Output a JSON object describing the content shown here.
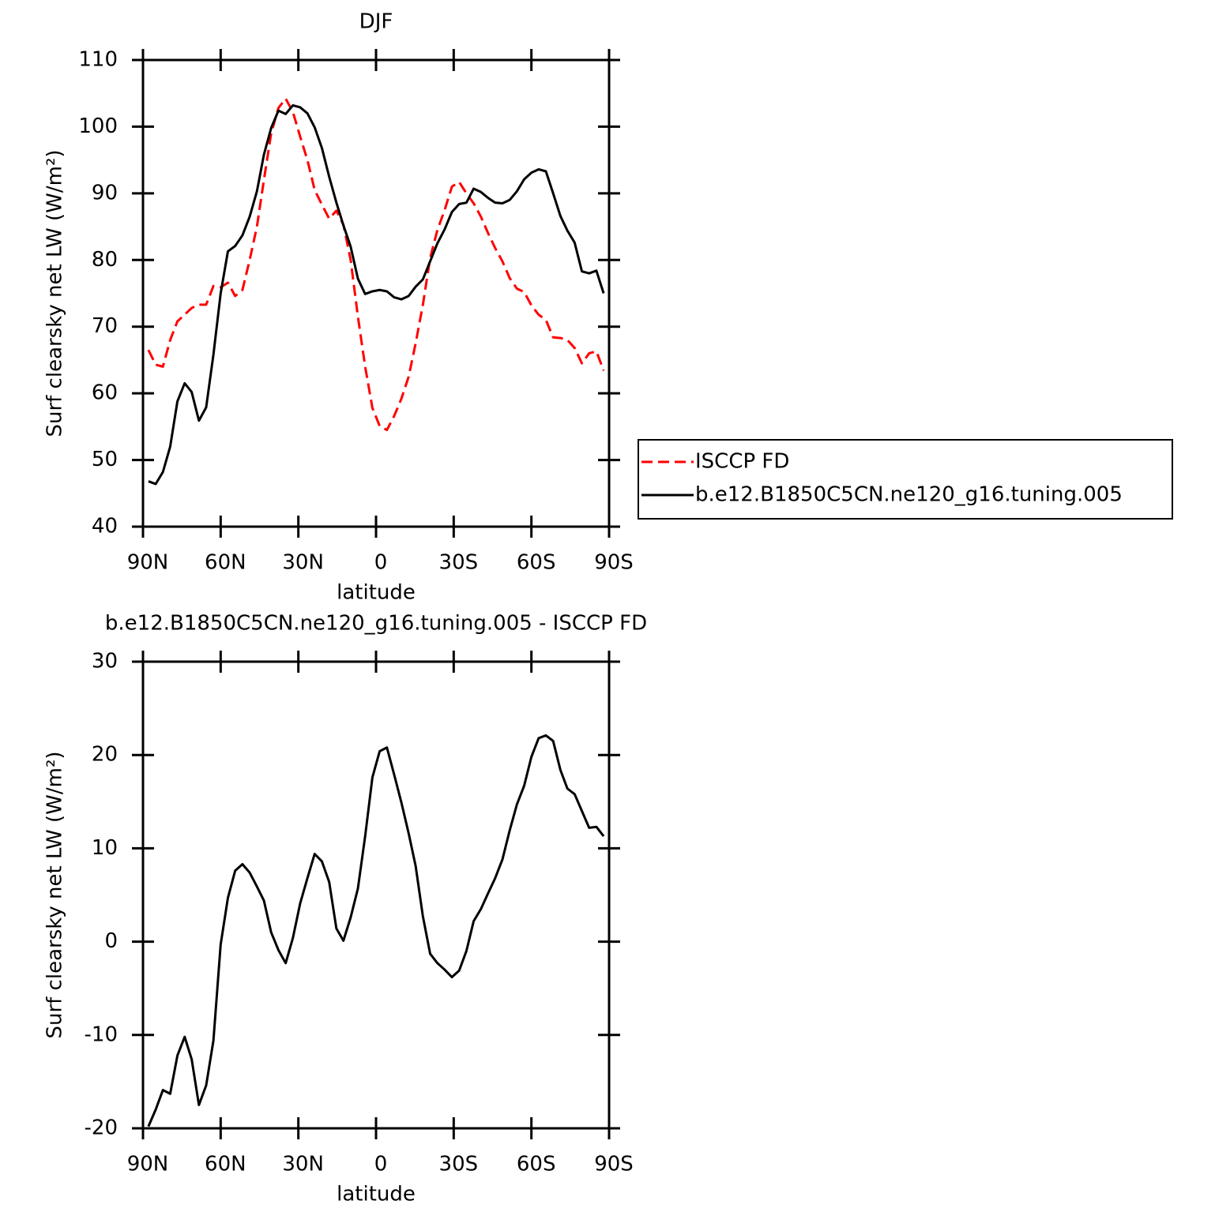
{
  "chart_data": [
    {
      "type": "line",
      "title": "DJF",
      "xlabel": "latitude",
      "ylabel": "Surf clearsky net LW (W/m²)",
      "xlim": [
        90,
        -90
      ],
      "ylim": [
        40,
        110
      ],
      "xticks": [
        {
          "value": 90,
          "label": "90N"
        },
        {
          "value": 60,
          "label": "60N"
        },
        {
          "value": 30,
          "label": "30N"
        },
        0,
        {
          "value": -30,
          "label": "30S"
        },
        {
          "value": -60,
          "label": "60S"
        },
        {
          "value": -90,
          "label": "90S"
        }
      ],
      "yticks": [
        40,
        50,
        60,
        70,
        80,
        90,
        100,
        110
      ],
      "legend": "right",
      "x": [
        87.9,
        85.1,
        82.3,
        79.5,
        76.7,
        73.9,
        71.2,
        68.4,
        65.6,
        62.8,
        60.0,
        57.2,
        54.4,
        51.6,
        48.8,
        46.0,
        43.3,
        40.5,
        37.7,
        34.9,
        32.1,
        29.3,
        26.5,
        23.7,
        20.9,
        18.1,
        15.3,
        12.6,
        9.8,
        7.0,
        4.2,
        1.4,
        -1.4,
        -4.2,
        -7.0,
        -9.8,
        -12.6,
        -15.3,
        -18.1,
        -20.9,
        -23.7,
        -26.5,
        -29.3,
        -32.1,
        -34.9,
        -37.7,
        -40.5,
        -43.3,
        -46.0,
        -48.8,
        -51.6,
        -54.4,
        -57.2,
        -60.0,
        -62.8,
        -65.6,
        -68.4,
        -71.2,
        -73.9,
        -76.7,
        -79.5,
        -82.3,
        -85.1,
        -87.9
      ],
      "series": [
        {
          "name": "ISCCP FD",
          "color": "#ff0000",
          "style": "dashed",
          "values": [
            66.5,
            64.3,
            64,
            68,
            70.8,
            71.8,
            72.8,
            73.3,
            73.3,
            76.1,
            75.9,
            76.6,
            74.6,
            75.5,
            80,
            85,
            92,
            99,
            102.8,
            104.2,
            102.2,
            98.5,
            95,
            90.5,
            88.3,
            86.2,
            87.4,
            85.3,
            80,
            71.5,
            64,
            57.8,
            55.1,
            54.5,
            56.6,
            59.2,
            62.5,
            67.5,
            73.3,
            80.3,
            84.5,
            87.5,
            91,
            91.7,
            90,
            88.5,
            86.5,
            84,
            81.8,
            79.8,
            77.3,
            75.7,
            75.2,
            73.2,
            71.8,
            71,
            68.4,
            68.3,
            68,
            66.8,
            64.5,
            66,
            66.3,
            63.4
          ]
        },
        {
          "name": "b.e12.B1850C5CN.ne120_g16.tuning.005",
          "color": "#000000",
          "style": "solid",
          "values": [
            46.8,
            46.4,
            48.2,
            52,
            58.8,
            61.5,
            60.2,
            55.9,
            57.9,
            65.8,
            75,
            81.3,
            82.1,
            83.7,
            86.5,
            90.3,
            95.8,
            99.8,
            102.4,
            101.9,
            103.2,
            102.9,
            102,
            99.9,
            96.8,
            92.5,
            88.6,
            85.2,
            82,
            77.2,
            74.9,
            75.3,
            75.5,
            75.3,
            74.4,
            74.1,
            74.6,
            76,
            77.1,
            79.8,
            82.5,
            84.6,
            87.2,
            88.4,
            88.6,
            90.7,
            90.2,
            89.3,
            88.6,
            88.5,
            89,
            90.3,
            92.1,
            93.1,
            93.6,
            93.3,
            90,
            86.6,
            84.4,
            82.6,
            78.3,
            78,
            78.4,
            75
          ]
        }
      ]
    },
    {
      "type": "line",
      "title": "b.e12.B1850C5CN.ne120_g16.tuning.005 - ISCCP FD",
      "xlabel": "latitude",
      "ylabel": "Surf clearsky net LW (W/m²)",
      "xlim": [
        90,
        -90
      ],
      "ylim": [
        -20,
        30
      ],
      "xticks": [
        {
          "value": 90,
          "label": "90N"
        },
        {
          "value": 60,
          "label": "60N"
        },
        {
          "value": 30,
          "label": "30N"
        },
        0,
        {
          "value": -30,
          "label": "30S"
        },
        {
          "value": -60,
          "label": "60S"
        },
        {
          "value": -90,
          "label": "90S"
        }
      ],
      "yticks": [
        -20,
        -10,
        0,
        10,
        20,
        30
      ],
      "x": [
        87.9,
        85.1,
        82.3,
        79.5,
        76.7,
        73.9,
        71.2,
        68.4,
        65.6,
        62.8,
        60.0,
        57.2,
        54.4,
        51.6,
        48.8,
        46.0,
        43.3,
        40.5,
        37.7,
        34.9,
        32.1,
        29.3,
        26.5,
        23.7,
        20.9,
        18.1,
        15.3,
        12.6,
        9.8,
        7.0,
        4.2,
        1.4,
        -1.4,
        -4.2,
        -7.0,
        -9.8,
        -12.6,
        -15.3,
        -18.1,
        -20.9,
        -23.7,
        -26.5,
        -29.3,
        -32.1,
        -34.9,
        -37.7,
        -40.5,
        -43.3,
        -46.0,
        -48.8,
        -51.6,
        -54.4,
        -57.2,
        -60.0,
        -62.8,
        -65.6,
        -68.4,
        -71.2,
        -73.9,
        -76.7,
        -79.5,
        -82.3,
        -85.1,
        -87.9
      ],
      "series": [
        {
          "color": "#000000",
          "style": "solid",
          "values": [
            -19.8,
            -18,
            -15.9,
            -16.3,
            -12.2,
            -10.2,
            -12.6,
            -17.5,
            -15.4,
            -10.6,
            -0.3,
            4.7,
            7.6,
            8.3,
            7.4,
            5.9,
            4.4,
            1,
            -0.9,
            -2.3,
            0.4,
            4.1,
            6.8,
            9.4,
            8.6,
            6.4,
            1.4,
            0.1,
            2.6,
            5.7,
            11.3,
            17.6,
            20.4,
            20.8,
            17.9,
            14.9,
            11.6,
            8.1,
            2.7,
            -1.3,
            -2.3,
            -3,
            -3.8,
            -3.1,
            -1,
            2.2,
            3.5,
            5.2,
            6.8,
            8.8,
            11.9,
            14.7,
            16.7,
            19.8,
            21.8,
            22.1,
            21.5,
            18.4,
            16.4,
            15.8,
            14,
            12.2,
            12.3,
            11.3
          ]
        }
      ]
    }
  ]
}
